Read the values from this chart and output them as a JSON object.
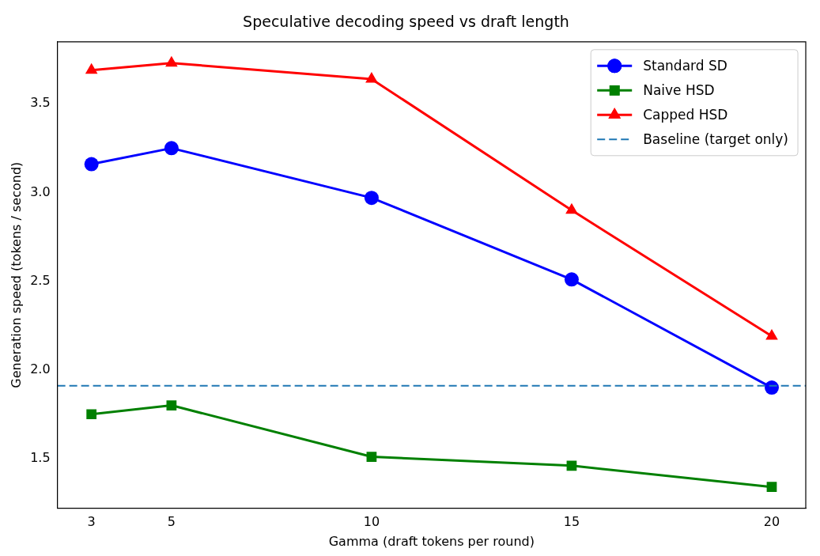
{
  "chart_data": {
    "type": "line",
    "title": "Speculative decoding speed vs draft length",
    "xlabel": "Gamma (draft tokens per round)",
    "ylabel": "Generation speed (tokens / second)",
    "x": [
      3,
      5,
      10,
      15,
      20
    ],
    "xlim": [
      2.15,
      20.85
    ],
    "xticks": [
      3,
      5,
      10,
      15,
      20
    ],
    "ylim": [
      1.22,
      3.85
    ],
    "yticks": [
      1.5,
      {
        "value": 2,
        "label": "2.0"
      },
      2.5,
      {
        "value": 3,
        "label": "3.0"
      },
      3.5
    ],
    "series": [
      {
        "name": "Standard SD",
        "color": "#0000ff",
        "marker": "circle",
        "values": [
          3.16,
          3.25,
          2.97,
          2.51,
          1.9
        ]
      },
      {
        "name": "Naive HSD",
        "color": "#008000",
        "marker": "square",
        "values": [
          1.75,
          1.8,
          1.51,
          1.46,
          1.34
        ]
      },
      {
        "name": "Capped HSD",
        "color": "#ff0000",
        "marker": "triangle",
        "values": [
          3.69,
          3.73,
          3.64,
          2.9,
          2.19
        ]
      }
    ],
    "ref_lines": [
      {
        "axis": "y",
        "value": 1.91,
        "label": "Baseline (target only)",
        "color": "#1f77b4",
        "line_style": "dashed"
      }
    ],
    "legend": "top right",
    "grid": false
  }
}
